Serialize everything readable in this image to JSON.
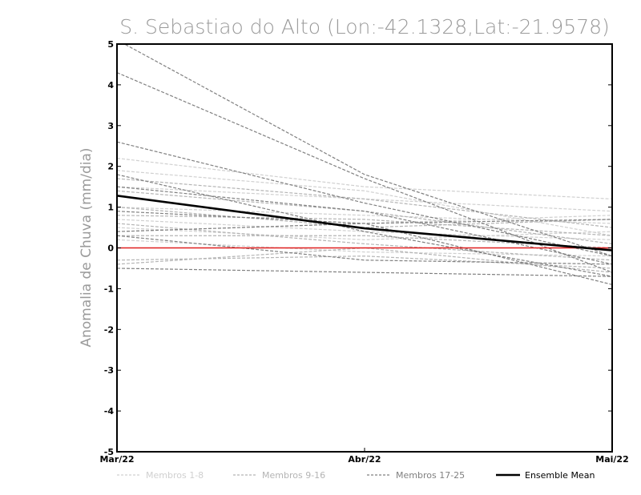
{
  "chart_data": {
    "type": "line",
    "title": "S. Sebastiao do Alto (Lon:-42.1328,Lat:-21.9578)",
    "xlabel": "",
    "ylabel": "Anomalia de Chuva (mm/dia)",
    "categories": [
      "Mar/22",
      "Abr/22",
      "Mai/22"
    ],
    "ylim": [
      -5,
      5
    ],
    "yticks": [
      "5",
      "4",
      "3",
      "2",
      "1",
      "0",
      "-1",
      "-2",
      "-3",
      "-4",
      "-5"
    ],
    "grid": false,
    "legend_placement": "bottom",
    "reference_line": {
      "value": 0,
      "color": "#e02020"
    },
    "groups": [
      {
        "name": "Membros 1-8",
        "color": "#d0d0d0",
        "members": [
          [
            2.2,
            1.5,
            1.2
          ],
          [
            1.9,
            1.4,
            0.3
          ],
          [
            1.5,
            1.2,
            0.9
          ],
          [
            1.0,
            0.8,
            0.6
          ],
          [
            0.7,
            0.4,
            0.2
          ],
          [
            0.4,
            0.6,
            0.8
          ],
          [
            0.2,
            -0.1,
            -0.2
          ],
          [
            0.5,
            0.2,
            0.4
          ]
        ]
      },
      {
        "name": "Membros 9-16",
        "color": "#b4b4b4",
        "members": [
          [
            1.7,
            1.2,
            0.5
          ],
          [
            1.4,
            0.9,
            0.1
          ],
          [
            1.0,
            0.5,
            0.7
          ],
          [
            0.8,
            0.7,
            0.3
          ],
          [
            0.6,
            0.1,
            -0.3
          ],
          [
            0.3,
            0.3,
            0.0
          ],
          [
            -0.3,
            -0.2,
            -0.5
          ],
          [
            -0.4,
            0.0,
            -0.6
          ]
        ]
      },
      {
        "name": "Membros 17-25",
        "color": "#808080",
        "members": [
          [
            5.1,
            1.8,
            -0.2
          ],
          [
            4.3,
            1.7,
            -0.6
          ],
          [
            2.6,
            1.1,
            -0.2
          ],
          [
            1.8,
            0.4,
            -0.7
          ],
          [
            1.5,
            0.9,
            -0.4
          ],
          [
            0.9,
            0.6,
            -0.9
          ],
          [
            0.4,
            0.6,
            0.7
          ],
          [
            0.3,
            -0.3,
            -0.4
          ],
          [
            -0.5,
            -0.6,
            -0.7
          ]
        ]
      }
    ],
    "ensemble_mean": {
      "name": "Ensemble Mean",
      "color": "#000000",
      "values": [
        1.28,
        0.48,
        -0.06
      ]
    },
    "legend": [
      {
        "label": "Membros 1-8",
        "color": "#d0d0d0",
        "dashed": true
      },
      {
        "label": "Membros 9-16",
        "color": "#b4b4b4",
        "dashed": true
      },
      {
        "label": "Membros 17-25",
        "color": "#808080",
        "dashed": true
      },
      {
        "label": "Ensemble Mean",
        "color": "#000000",
        "dashed": false
      }
    ]
  }
}
